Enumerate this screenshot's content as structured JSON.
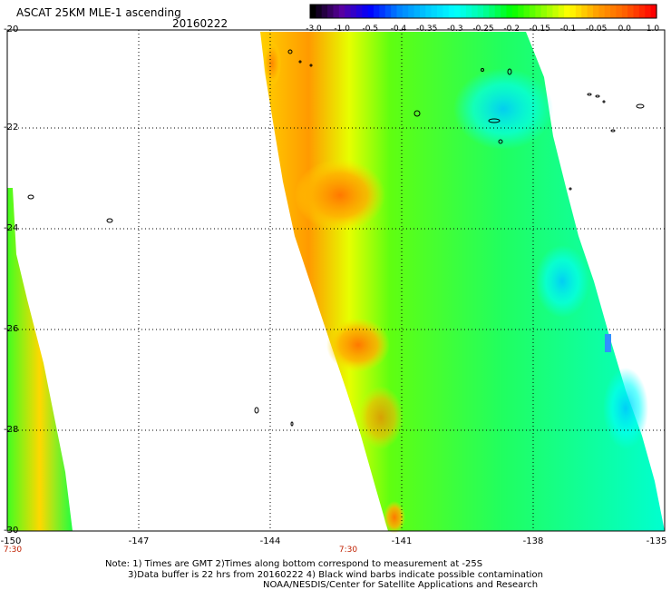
{
  "header": {
    "title": "ASCAT 25KM MLE-1 ascending",
    "date": "20160222"
  },
  "colorbar": {
    "labels": [
      "-3.0",
      "-1.0",
      "-0.5",
      "-0.4",
      "-0.35",
      "-0.3",
      "-0.25",
      "-0.2",
      "-0.15",
      "-0.1",
      "-0.05",
      "0.0",
      "1.0"
    ],
    "colors": [
      "#000000",
      "#5a00a0",
      "#0000ff",
      "#0080ff",
      "#00c8ff",
      "#00ffff",
      "#00ffa0",
      "#00ff00",
      "#80ff00",
      "#ffff00",
      "#ffa000",
      "#ff6000",
      "#ff0000"
    ]
  },
  "axes": {
    "lat_labels": [
      "-20",
      "-22",
      "-24",
      "-26",
      "-28",
      "-30"
    ],
    "lon_labels": [
      "-150",
      "-147",
      "-144",
      "-141",
      "-138",
      "-135"
    ],
    "time_labels": [
      "7:30",
      "7:30"
    ]
  },
  "notes": {
    "line1": "Note: 1) Times are GMT 2)Times along bottom correspond to measurement at -25S",
    "line2": "3)Data buffer is 22 hrs from 20160222 4) Black wind barbs indicate possible contamination",
    "line3": "NOAA/NESDIS/Center for Satellite Applications and Research"
  }
}
